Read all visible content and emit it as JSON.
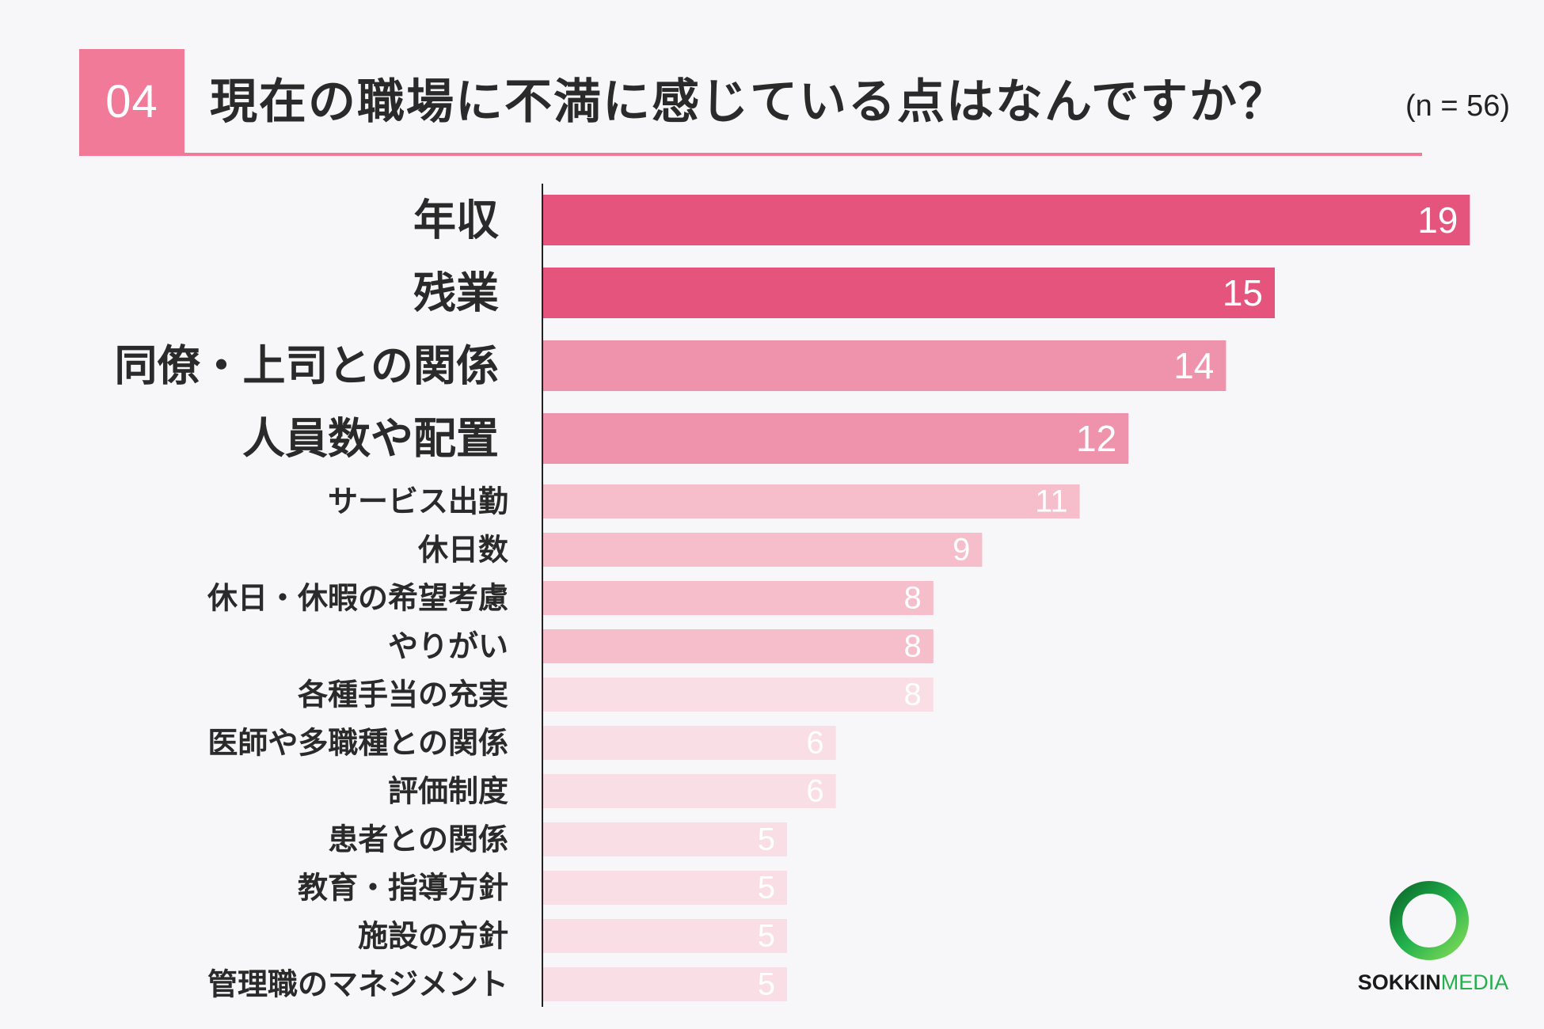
{
  "header": {
    "badge": "04",
    "title": "現在の職場に不満に感じている点はなんですか？",
    "n_label": "(n = 56)"
  },
  "logo": {
    "part1": "SOKKIN",
    "part2": "MEDIA"
  },
  "colors": {
    "accent": "#f07a98",
    "tier1": "#e5547d",
    "tier2": "#ef93ad",
    "tier3": "#f6bdcb",
    "tier4": "#f9dfe5"
  },
  "chart_data": {
    "type": "bar",
    "orientation": "horizontal",
    "title": "現在の職場に不満に感じている点はなんですか？",
    "categories": [
      "年収",
      "残業",
      "同僚・上司との関係",
      "人員数や配置",
      "サービス出勤",
      "休日数",
      "休日・休暇の希望考慮",
      "やりがい",
      "各種手当の充実",
      "医師や多職種との関係",
      "評価制度",
      "患者との関係",
      "教育・指導方針",
      "施設の方針",
      "管理職のマネジメント"
    ],
    "values": [
      19,
      15,
      14,
      12,
      11,
      9,
      8,
      8,
      8,
      6,
      6,
      5,
      5,
      5,
      5
    ],
    "grid": false,
    "legend": "none"
  }
}
